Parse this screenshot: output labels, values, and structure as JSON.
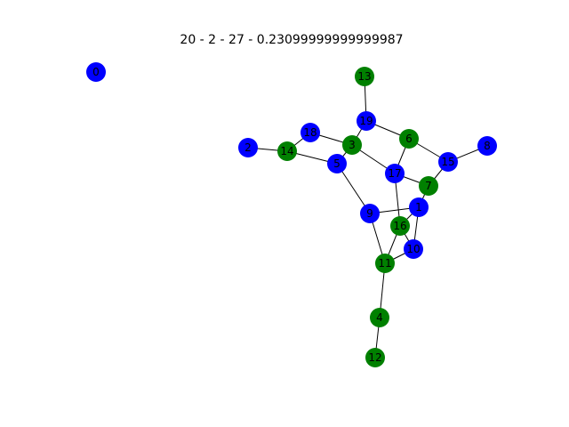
{
  "title": "20 - 2 - 27 - 0.23099999999999987",
  "colors": {
    "blue": "#0000ff",
    "green": "#008000"
  },
  "nodes": [
    {
      "id": "0",
      "label": "0",
      "color": "blue"
    },
    {
      "id": "1",
      "label": "1",
      "color": "blue"
    },
    {
      "id": "2",
      "label": "2",
      "color": "blue"
    },
    {
      "id": "3",
      "label": "3",
      "color": "green"
    },
    {
      "id": "4",
      "label": "4",
      "color": "green"
    },
    {
      "id": "5",
      "label": "5",
      "color": "blue"
    },
    {
      "id": "6",
      "label": "6",
      "color": "green"
    },
    {
      "id": "7",
      "label": "7",
      "color": "green"
    },
    {
      "id": "8",
      "label": "8",
      "color": "blue"
    },
    {
      "id": "9",
      "label": "9",
      "color": "blue"
    },
    {
      "id": "10",
      "label": "10",
      "color": "blue"
    },
    {
      "id": "11",
      "label": "11",
      "color": "green"
    },
    {
      "id": "12",
      "label": "12",
      "color": "green"
    },
    {
      "id": "13",
      "label": "13",
      "color": "green"
    },
    {
      "id": "14",
      "label": "14",
      "color": "green"
    },
    {
      "id": "15",
      "label": "15",
      "color": "blue"
    },
    {
      "id": "16",
      "label": "16",
      "color": "green"
    },
    {
      "id": "17",
      "label": "17",
      "color": "blue"
    },
    {
      "id": "18",
      "label": "18",
      "color": "blue"
    },
    {
      "id": "19",
      "label": "19",
      "color": "blue"
    }
  ],
  "edges": [
    [
      "2",
      "14"
    ],
    [
      "14",
      "18"
    ],
    [
      "14",
      "5"
    ],
    [
      "18",
      "3"
    ],
    [
      "3",
      "19"
    ],
    [
      "13",
      "19"
    ],
    [
      "19",
      "6"
    ],
    [
      "3",
      "17"
    ],
    [
      "5",
      "3"
    ],
    [
      "5",
      "9"
    ],
    [
      "6",
      "17"
    ],
    [
      "6",
      "15"
    ],
    [
      "15",
      "8"
    ],
    [
      "15",
      "7"
    ],
    [
      "17",
      "7"
    ],
    [
      "17",
      "16"
    ],
    [
      "7",
      "1"
    ],
    [
      "9",
      "1"
    ],
    [
      "9",
      "11"
    ],
    [
      "1",
      "16"
    ],
    [
      "1",
      "10"
    ],
    [
      "16",
      "10"
    ],
    [
      "16",
      "11"
    ],
    [
      "10",
      "11"
    ],
    [
      "11",
      "4"
    ],
    [
      "4",
      "12"
    ]
  ]
}
